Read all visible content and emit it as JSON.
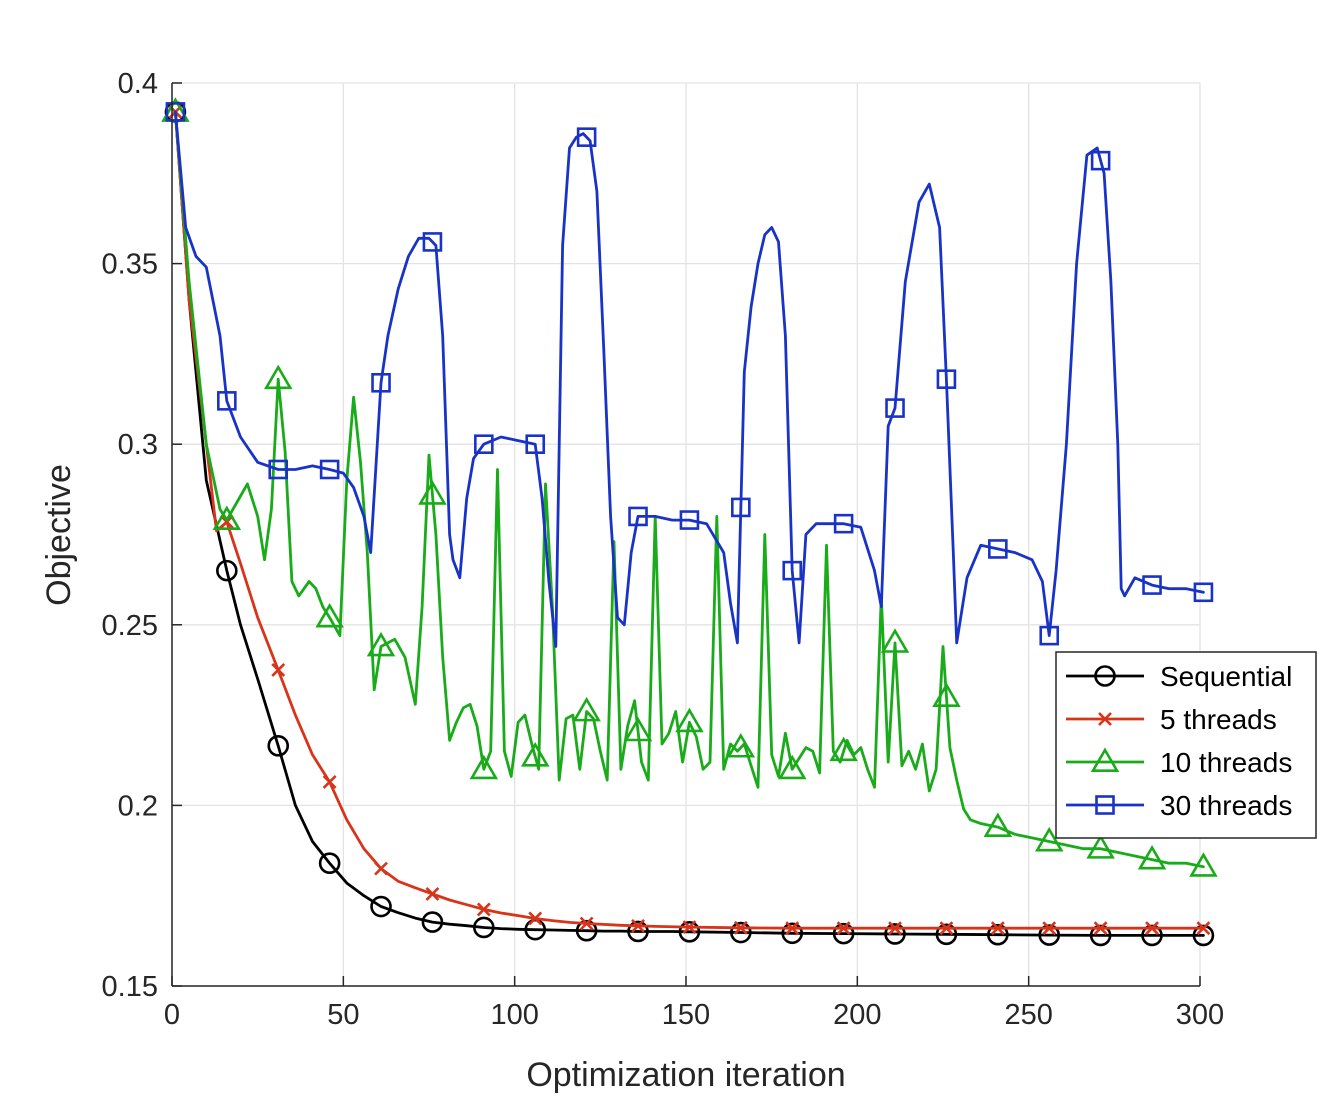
{
  "chart_data": {
    "type": "line",
    "title": "",
    "xlabel": "Optimization iteration",
    "ylabel": "Objective",
    "xlim": [
      0,
      300
    ],
    "ylim": [
      0.15,
      0.4
    ],
    "xticks": [
      0,
      50,
      100,
      150,
      200,
      250,
      300
    ],
    "yticks": [
      0.15,
      0.2,
      0.25,
      0.3,
      0.35,
      0.4
    ],
    "xtick_labels": [
      "0",
      "50",
      "100",
      "150",
      "200",
      "250",
      "300"
    ],
    "ytick_labels": [
      "0.15",
      "0.2",
      "0.25",
      "0.3",
      "0.35",
      "0.4"
    ],
    "grid": true,
    "legend_position": "right",
    "series": [
      {
        "name": "Sequential",
        "color": "#000000",
        "marker": "circle",
        "x": [
          1,
          5,
          10,
          16,
          20,
          25,
          31,
          36,
          41,
          46,
          51,
          56,
          61,
          66,
          71,
          76,
          81,
          86,
          91,
          96,
          101,
          106,
          111,
          116,
          121,
          126,
          131,
          136,
          141,
          146,
          151,
          166,
          181,
          196,
          211,
          226,
          241,
          256,
          271,
          286,
          301
        ],
        "y": [
          0.392,
          0.34,
          0.29,
          0.265,
          0.25,
          0.235,
          0.2165,
          0.2,
          0.19,
          0.184,
          0.1785,
          0.175,
          0.172,
          0.1703,
          0.1688,
          0.1677,
          0.1671,
          0.1667,
          0.1662,
          0.1659,
          0.1657,
          0.1656,
          0.1655,
          0.1654,
          0.1653,
          0.1652,
          0.1652,
          0.1651,
          0.1651,
          0.1651,
          0.165,
          0.1648,
          0.1646,
          0.1645,
          0.1644,
          0.1643,
          0.1642,
          0.1641,
          0.164,
          0.164,
          0.164
        ],
        "marker_x": [
          1,
          16,
          31,
          46,
          61,
          76,
          91,
          106,
          121,
          136,
          151,
          166,
          181,
          196,
          211,
          226,
          241,
          256,
          271,
          286,
          301
        ]
      },
      {
        "name": "5 threads",
        "color": "#d9341a",
        "marker": "x",
        "x": [
          1,
          5,
          10,
          13,
          16,
          20,
          25,
          31,
          36,
          41,
          46,
          51,
          56,
          61,
          66,
          71,
          76,
          81,
          86,
          91,
          96,
          101,
          106,
          111,
          116,
          121,
          131,
          141,
          151,
          166,
          181,
          196,
          211,
          226,
          241,
          256,
          271,
          286,
          301
        ],
        "y": [
          0.392,
          0.34,
          0.3,
          0.276,
          0.2785,
          0.267,
          0.252,
          0.2375,
          0.225,
          0.214,
          0.2065,
          0.196,
          0.188,
          0.1825,
          0.179,
          0.1772,
          0.1755,
          0.1738,
          0.1725,
          0.1712,
          0.1702,
          0.1695,
          0.1687,
          0.1681,
          0.1676,
          0.1673,
          0.1668,
          0.1665,
          0.1663,
          0.1661,
          0.166,
          0.166,
          0.166,
          0.166,
          0.166,
          0.166,
          0.166,
          0.166,
          0.166
        ],
        "marker_x": [
          1,
          16,
          31,
          46,
          61,
          76,
          91,
          106,
          121,
          136,
          151,
          166,
          181,
          196,
          211,
          226,
          241,
          256,
          271,
          286,
          301
        ]
      },
      {
        "name": "10 threads",
        "color": "#1aab1a",
        "marker": "triangle",
        "x": [
          1,
          5,
          10,
          14,
          16,
          19,
          22,
          25,
          27,
          29,
          31,
          33,
          35,
          37,
          40,
          42,
          44,
          46,
          49,
          51,
          53,
          55,
          57,
          59,
          61,
          63,
          65,
          68,
          71,
          73,
          75,
          77,
          79,
          81,
          83,
          85,
          87,
          89,
          91,
          93,
          95,
          97,
          99,
          101,
          103,
          105,
          107,
          109,
          111,
          113,
          115,
          117,
          119,
          121,
          123,
          125,
          127,
          129,
          131,
          133,
          135,
          137,
          139,
          141,
          143,
          145,
          147,
          149,
          151,
          153,
          155,
          157,
          159,
          161,
          163,
          165,
          167,
          169,
          171,
          173,
          175,
          177,
          179,
          181,
          183,
          185,
          187,
          189,
          191,
          193,
          195,
          197,
          199,
          201,
          203,
          205,
          207,
          209,
          211,
          213,
          215,
          217,
          219,
          221,
          223,
          225,
          227,
          229,
          231,
          233,
          236,
          241,
          246,
          251,
          256,
          261,
          266,
          271,
          276,
          281,
          286,
          291,
          296,
          301
        ],
        "y": [
          0.392,
          0.345,
          0.3,
          0.282,
          0.279,
          0.284,
          0.289,
          0.28,
          0.268,
          0.282,
          0.318,
          0.298,
          0.262,
          0.258,
          0.262,
          0.26,
          0.255,
          0.252,
          0.247,
          0.29,
          0.313,
          0.295,
          0.27,
          0.232,
          0.244,
          0.245,
          0.246,
          0.241,
          0.228,
          0.255,
          0.297,
          0.275,
          0.241,
          0.218,
          0.223,
          0.227,
          0.228,
          0.222,
          0.21,
          0.215,
          0.293,
          0.215,
          0.208,
          0.223,
          0.225,
          0.217,
          0.21,
          0.289,
          0.255,
          0.207,
          0.224,
          0.225,
          0.21,
          0.226,
          0.224,
          0.215,
          0.207,
          0.273,
          0.21,
          0.222,
          0.229,
          0.212,
          0.207,
          0.28,
          0.217,
          0.22,
          0.226,
          0.212,
          0.223,
          0.219,
          0.21,
          0.212,
          0.28,
          0.21,
          0.217,
          0.215,
          0.217,
          0.211,
          0.205,
          0.275,
          0.214,
          0.208,
          0.22,
          0.21,
          0.213,
          0.216,
          0.215,
          0.209,
          0.272,
          0.215,
          0.212,
          0.218,
          0.214,
          0.216,
          0.21,
          0.205,
          0.258,
          0.212,
          0.245,
          0.211,
          0.215,
          0.21,
          0.217,
          0.204,
          0.21,
          0.244,
          0.216,
          0.207,
          0.199,
          0.196,
          0.195,
          0.194,
          0.192,
          0.191,
          0.19,
          0.189,
          0.188,
          0.188,
          0.187,
          0.186,
          0.185,
          0.184,
          0.184,
          0.183
        ],
        "marker_x": [
          1,
          16,
          31,
          46,
          61,
          76,
          91,
          106,
          121,
          136,
          151,
          166,
          181,
          196,
          211,
          226,
          241,
          256,
          271,
          286,
          301
        ]
      },
      {
        "name": "30 threads",
        "color": "#1a33c7",
        "marker": "square",
        "x": [
          1,
          4,
          7,
          10,
          14,
          16,
          20,
          25,
          31,
          36,
          41,
          46,
          50,
          53,
          56,
          58,
          61,
          63,
          66,
          69,
          72,
          75,
          77,
          79,
          81,
          82,
          84,
          86,
          88,
          91,
          96,
          101,
          106,
          108,
          110,
          112,
          114,
          116,
          118,
          120,
          122,
          124,
          126,
          128,
          130,
          132,
          134,
          136,
          141,
          146,
          151,
          156,
          161,
          163,
          165,
          167,
          169,
          171,
          173,
          175,
          177,
          179,
          181,
          183,
          185,
          188,
          191,
          196,
          201,
          205,
          207,
          209,
          211,
          214,
          218,
          221,
          224,
          226,
          228,
          229,
          232,
          236,
          241,
          246,
          251,
          254,
          256,
          258,
          261,
          264,
          267,
          270,
          272,
          274,
          276,
          277,
          278,
          281,
          286,
          291,
          296,
          301
        ],
        "y": [
          0.392,
          0.36,
          0.352,
          0.349,
          0.33,
          0.312,
          0.302,
          0.295,
          0.293,
          0.293,
          0.294,
          0.293,
          0.292,
          0.288,
          0.28,
          0.27,
          0.317,
          0.33,
          0.343,
          0.352,
          0.357,
          0.357,
          0.355,
          0.33,
          0.275,
          0.268,
          0.263,
          0.285,
          0.296,
          0.3,
          0.302,
          0.301,
          0.3,
          0.285,
          0.262,
          0.244,
          0.355,
          0.382,
          0.385,
          0.386,
          0.384,
          0.37,
          0.326,
          0.28,
          0.252,
          0.25,
          0.27,
          0.28,
          0.28,
          0.279,
          0.279,
          0.278,
          0.27,
          0.256,
          0.245,
          0.32,
          0.338,
          0.35,
          0.358,
          0.36,
          0.356,
          0.33,
          0.265,
          0.245,
          0.275,
          0.278,
          0.278,
          0.278,
          0.277,
          0.265,
          0.255,
          0.305,
          0.31,
          0.345,
          0.367,
          0.372,
          0.36,
          0.318,
          0.27,
          0.245,
          0.263,
          0.272,
          0.271,
          0.27,
          0.268,
          0.262,
          0.247,
          0.265,
          0.3,
          0.35,
          0.38,
          0.382,
          0.375,
          0.345,
          0.3,
          0.26,
          0.258,
          0.263,
          0.261,
          0.26,
          0.26,
          0.259
        ],
        "marker_x": [
          1,
          16,
          31,
          46,
          61,
          76,
          91,
          106,
          121,
          136,
          151,
          166,
          181,
          196,
          211,
          226,
          241,
          256,
          271,
          286,
          301
        ]
      }
    ]
  }
}
